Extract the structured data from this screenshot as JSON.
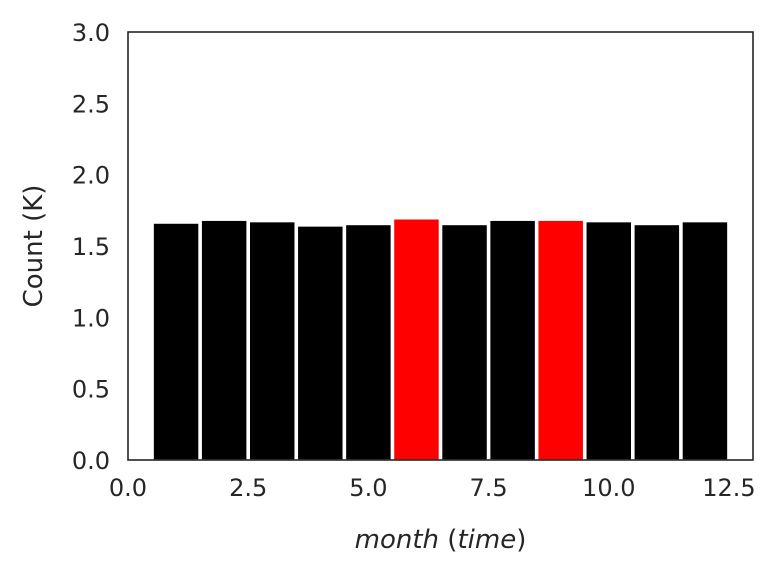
{
  "chart_data": {
    "type": "bar",
    "title": "",
    "xlabel_parts": [
      {
        "text": "month",
        "italic": true
      },
      {
        "text": " (",
        "italic": false
      },
      {
        "text": "time",
        "italic": true
      },
      {
        "text": ")",
        "italic": false
      }
    ],
    "ylabel": "Count (K)",
    "xlim": [
      0.0,
      13.0
    ],
    "ylim": [
      0.0,
      3.0
    ],
    "xticks": [
      "0.0",
      "2.5",
      "5.0",
      "7.5",
      "10.0",
      "12.5"
    ],
    "xtick_values": [
      0.0,
      2.5,
      5.0,
      7.5,
      10.0,
      12.5
    ],
    "yticks": [
      "0.0",
      "0.5",
      "1.0",
      "1.5",
      "2.0",
      "2.5",
      "3.0"
    ],
    "ytick_values": [
      0.0,
      0.5,
      1.0,
      1.5,
      2.0,
      2.5,
      3.0
    ],
    "bar_width": 0.95,
    "grid": false,
    "x": [
      1,
      2,
      3,
      4,
      5,
      6,
      7,
      8,
      9,
      10,
      11,
      12
    ],
    "values": [
      1.66,
      1.68,
      1.67,
      1.64,
      1.65,
      1.69,
      1.65,
      1.68,
      1.68,
      1.67,
      1.65,
      1.67
    ],
    "bar_colors": [
      "#000000",
      "#000000",
      "#000000",
      "#000000",
      "#000000",
      "#ff0000",
      "#000000",
      "#000000",
      "#ff0000",
      "#000000",
      "#000000",
      "#000000"
    ],
    "edge_color": "#ffffff",
    "axis_color": "#262626"
  }
}
